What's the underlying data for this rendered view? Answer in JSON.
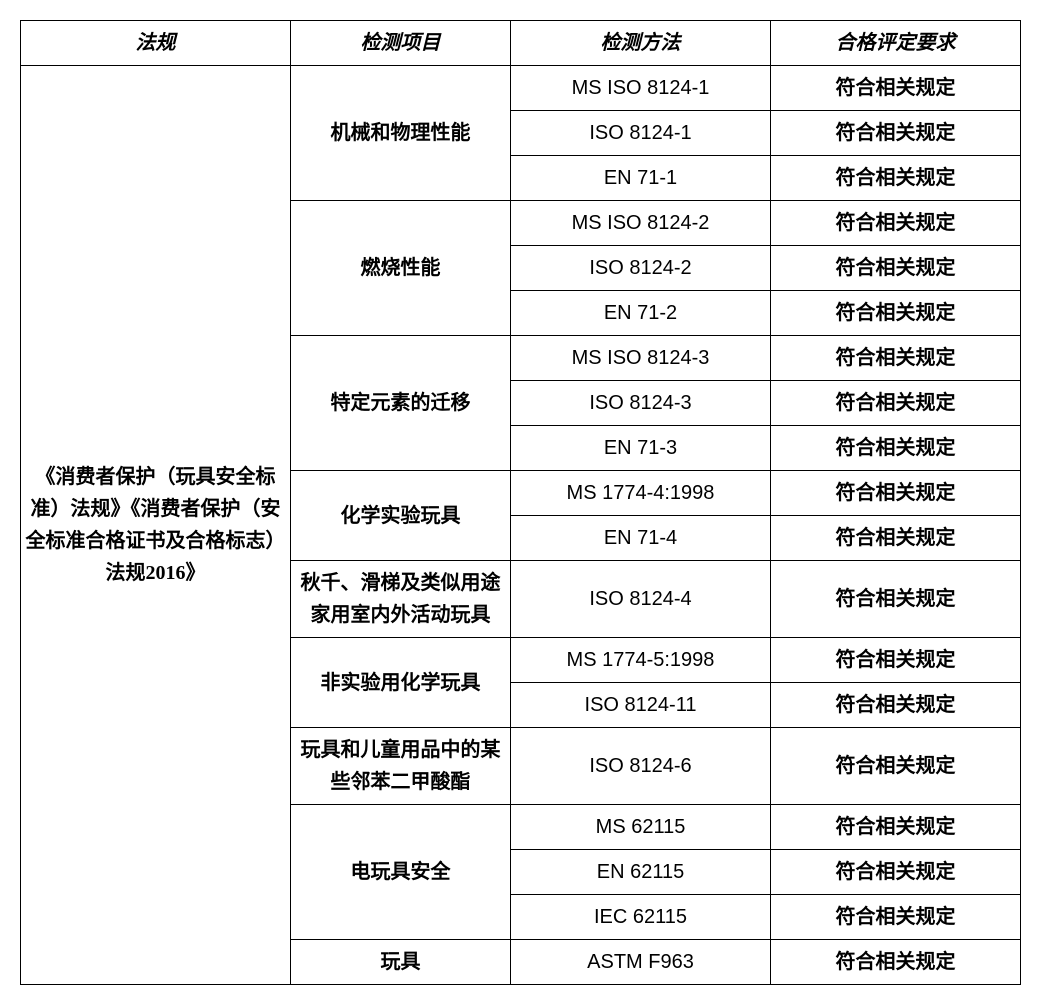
{
  "columns": [
    "法规",
    "检测项目",
    "检测方法",
    "合格评定要求"
  ],
  "regulation": "《消费者保护（玩具安全标准）法规》《消费者保护（安全标准合格证书及合格标志）法规2016》",
  "groups": [
    {
      "item": "机械和物理性能",
      "rows": [
        {
          "method": "MS ISO 8124-1",
          "req": "符合相关规定"
        },
        {
          "method": "ISO 8124-1",
          "req": "符合相关规定"
        },
        {
          "method": "EN 71-1",
          "req": "符合相关规定"
        }
      ]
    },
    {
      "item": "燃烧性能",
      "rows": [
        {
          "method": "MS ISO 8124-2",
          "req": "符合相关规定"
        },
        {
          "method": "ISO 8124-2",
          "req": "符合相关规定"
        },
        {
          "method": "EN 71-2",
          "req": "符合相关规定"
        }
      ]
    },
    {
      "item": "特定元素的迁移",
      "rows": [
        {
          "method": "MS ISO 8124-3",
          "req": "符合相关规定"
        },
        {
          "method": "ISO 8124-3",
          "req": "符合相关规定"
        },
        {
          "method": "EN 71-3",
          "req": "符合相关规定"
        }
      ]
    },
    {
      "item": "化学实验玩具",
      "rows": [
        {
          "method": "MS 1774-4:1998",
          "req": "符合相关规定"
        },
        {
          "method": "EN 71-4",
          "req": "符合相关规定"
        }
      ]
    },
    {
      "item": "秋千、滑梯及类似用途家用室内外活动玩具",
      "rows": [
        {
          "method": "ISO 8124-4",
          "req": "符合相关规定"
        }
      ]
    },
    {
      "item": "非实验用化学玩具",
      "rows": [
        {
          "method": "MS 1774-5:1998",
          "req": "符合相关规定"
        },
        {
          "method": "ISO 8124-11",
          "req": "符合相关规定"
        }
      ]
    },
    {
      "item": "玩具和儿童用品中的某些邻苯二甲酸酯",
      "rows": [
        {
          "method": "ISO 8124-6",
          "req": "符合相关规定"
        }
      ]
    },
    {
      "item": "电玩具安全",
      "rows": [
        {
          "method": "MS 62115",
          "req": "符合相关规定"
        },
        {
          "method": "EN 62115",
          "req": "符合相关规定"
        },
        {
          "method": "IEC 62115",
          "req": "符合相关规定"
        }
      ]
    },
    {
      "item": "玩具",
      "rows": [
        {
          "method": "ASTM F963",
          "req": "符合相关规定"
        }
      ]
    }
  ]
}
